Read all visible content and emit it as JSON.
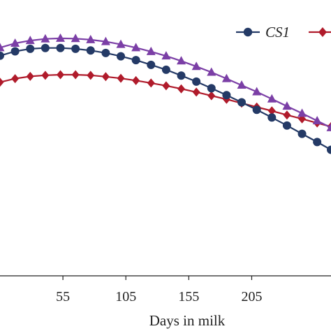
{
  "chart_data": {
    "type": "line",
    "xlabel": "Days in milk",
    "ylabel": "",
    "x_ticks": [
      55,
      105,
      155,
      205
    ],
    "xlim": [
      5,
      268
    ],
    "ylim": [
      0,
      100
    ],
    "grid": false,
    "legend_position": "top-right",
    "x": [
      5,
      17,
      29,
      41,
      53,
      65,
      77,
      89,
      101,
      113,
      125,
      137,
      149,
      161,
      173,
      185,
      197,
      209,
      221,
      233,
      245,
      257,
      268
    ],
    "series": [
      {
        "name": "CS1",
        "color": "#243a66",
        "marker": "circle",
        "values": [
          79.8,
          81.4,
          82.3,
          82.6,
          82.6,
          82.3,
          81.7,
          80.8,
          79.6,
          78.2,
          76.5,
          74.7,
          72.6,
          70.4,
          68.0,
          65.5,
          62.9,
          60.2,
          57.4,
          54.5,
          51.5,
          48.5,
          45.7
        ]
      },
      {
        "name": "",
        "color": "#b01b2b",
        "marker": "diamond",
        "values": [
          70.2,
          71.5,
          72.3,
          72.7,
          72.9,
          72.9,
          72.7,
          72.2,
          71.6,
          70.8,
          69.9,
          68.9,
          67.8,
          66.6,
          65.3,
          64.0,
          62.6,
          61.2,
          59.8,
          58.3,
          56.9,
          55.4,
          54.1
        ]
      },
      {
        "name": "",
        "color": "#7b3fa6",
        "marker": "triangle",
        "values": [
          82.7,
          84.3,
          85.3,
          85.9,
          86.1,
          86.0,
          85.6,
          84.9,
          83.9,
          82.7,
          81.3,
          79.7,
          77.9,
          75.9,
          73.8,
          71.5,
          69.1,
          66.7,
          64.1,
          61.5,
          58.9,
          56.2,
          53.7
        ]
      }
    ]
  }
}
